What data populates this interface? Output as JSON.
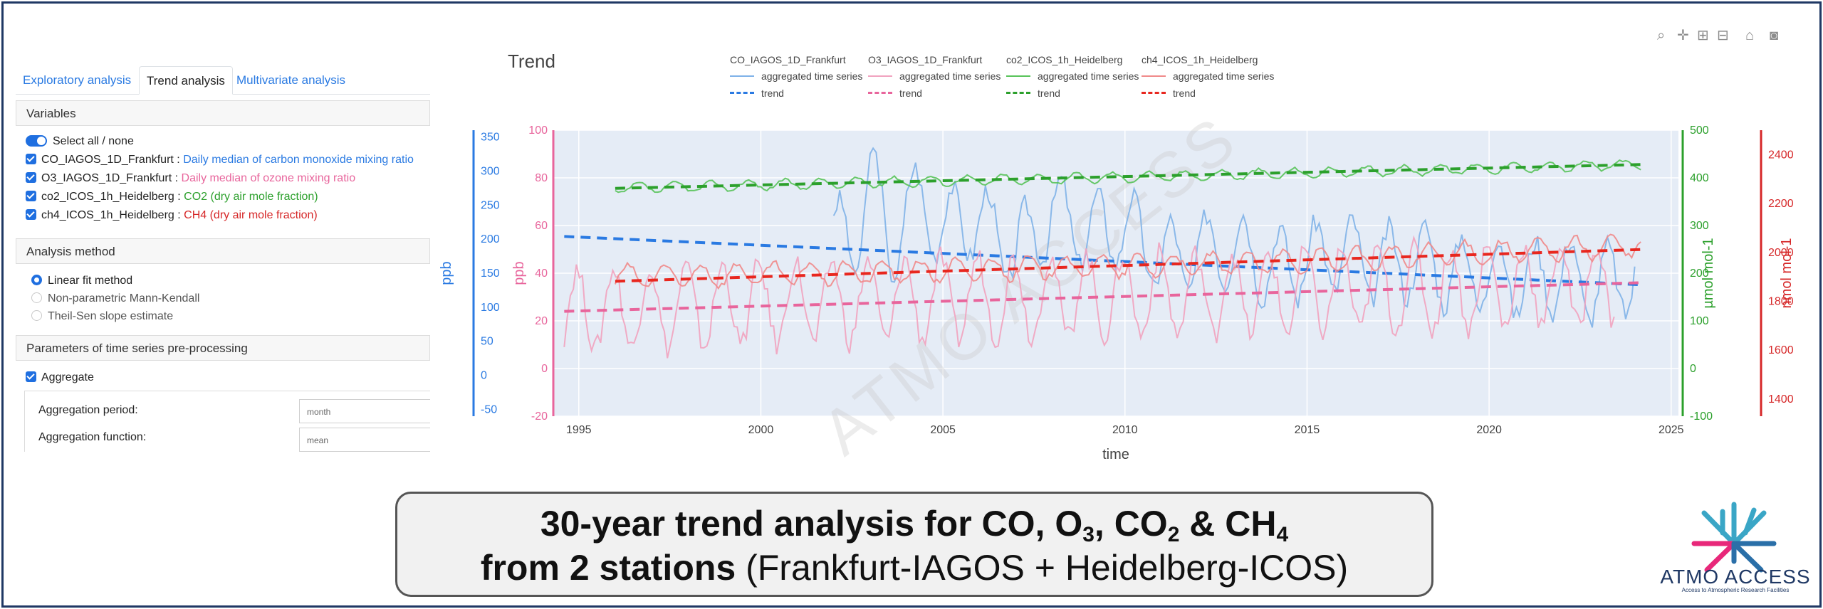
{
  "tabs": [
    "Exploratory analysis",
    "Trend analysis",
    "Multivariate analysis"
  ],
  "active_tab": 1,
  "variables": {
    "header": "Variables",
    "select_all_label": "Select all / none",
    "items": [
      {
        "name": "CO_IAGOS_1D_Frankfurt",
        "desc": "Daily median of carbon monoxide mixing ratio",
        "color": "#2a7ae2"
      },
      {
        "name": "O3_IAGOS_1D_Frankfurt",
        "desc": "Daily median of ozone mixing ratio",
        "color": "#e8659c"
      },
      {
        "name": "co2_ICOS_1h_Heidelberg",
        "desc": "CO2 (dry air mole fraction)",
        "color": "#2ca02c"
      },
      {
        "name": "ch4_ICOS_1h_Heidelberg",
        "desc": "CH4 (dry air mole fraction)",
        "color": "#d62728"
      }
    ],
    "separator": " : "
  },
  "analysis_method": {
    "header": "Analysis method",
    "options": [
      "Linear fit method",
      "Non-parametric Mann-Kendall",
      "Theil-Sen slope estimate"
    ],
    "selected": 0
  },
  "preprocessing": {
    "header": "Parameters of time series pre-processing",
    "aggregate_label": "Aggregate",
    "period_label": "Aggregation period:",
    "period_value": "month",
    "function_label": "Aggregation function:",
    "function_value": "mean"
  },
  "caption": {
    "line1_prefix": "30-year trend analysis for CO, O",
    "line1_o3_sub": "3",
    "line1_mid": ", CO",
    "line1_co2_sub": "2",
    "line1_and": " & CH",
    "line1_ch4_sub": "4",
    "line2_bold": "from 2 stations",
    "line2_rest": " (Frankfurt-IAGOS + Heidelberg-ICOS)"
  },
  "logo": {
    "name": "ATMO ACCESS",
    "tagline": "Access to Atmospheric Research Facilities"
  },
  "chart_data": {
    "type": "line",
    "title": "Trend",
    "xlabel": "time",
    "watermark": "ATMO ACCESS",
    "x_range": [
      1994.3,
      2025.2
    ],
    "x_ticks": [
      1995,
      2000,
      2005,
      2010,
      2015,
      2020,
      2025
    ],
    "axes": {
      "ppb_left": {
        "label": "ppb",
        "range": [
          -60,
          360
        ],
        "ticks": [
          -50,
          0,
          50,
          100,
          150,
          200,
          250,
          300,
          350
        ],
        "color": "#2a7ae2"
      },
      "ppb_right": {
        "label": "ppb",
        "range": [
          -20,
          100
        ],
        "ticks": [
          -20,
          0,
          20,
          40,
          60,
          80,
          100
        ],
        "color": "#e8659c"
      },
      "umol": {
        "label": "µmol mol-1",
        "range": [
          -100,
          500
        ],
        "ticks": [
          -100,
          0,
          100,
          200,
          300,
          400,
          500
        ],
        "color": "#2ca02c"
      },
      "nmol": {
        "label": "nmol mol-1",
        "range": [
          1330,
          2500
        ],
        "ticks": [
          1400,
          1600,
          1800,
          2000,
          2200,
          2400
        ],
        "color": "#d62728"
      }
    },
    "legend": {
      "series_label": "aggregated time series",
      "trend_label": "trend"
    },
    "series": [
      {
        "name": "CO_IAGOS_1D_Frankfurt",
        "axis": "ppb_left",
        "color": "#7fb2e8",
        "trend_color": "#2a7ae2",
        "x": [
          2002.0,
          2002.5,
          2003.0,
          2003.5,
          2004.0,
          2005.0,
          2006.0,
          2007.0,
          2008.0,
          2009.0,
          2010.0,
          2011.0,
          2012.0,
          2013.0,
          2014.0,
          2015.0,
          2016.0,
          2017.0,
          2018.0,
          2019.0,
          2020.0,
          2021.0,
          2022.0,
          2023.0,
          2024.0
        ],
        "y": [
          240,
          150,
          330,
          160,
          260,
          220,
          230,
          180,
          240,
          210,
          220,
          170,
          180,
          190,
          160,
          170,
          180,
          160,
          170,
          150,
          150,
          140,
          150,
          130,
          150
        ],
        "amplitude": 55,
        "trend": {
          "x0": 1994.6,
          "y0": 204,
          "x1": 2024.2,
          "y1": 133
        }
      },
      {
        "name": "O3_IAGOS_1D_Frankfurt",
        "axis": "ppb_right",
        "color": "#f1a3bf",
        "trend_color": "#e8659c",
        "x": [
          1994.6,
          1996.0,
          1998.0,
          2000.0,
          2002.0,
          2004.0,
          2006.0,
          2008.0,
          2010.0,
          2012.0,
          2014.0,
          2016.0,
          2018.0,
          2020.0,
          2022.0,
          2023.5
        ],
        "y": [
          24,
          25,
          26,
          27,
          28,
          29,
          30,
          30,
          31,
          31,
          32,
          33,
          33,
          34,
          35,
          35
        ],
        "amplitude": 17,
        "trend": {
          "x0": 1994.6,
          "y0": 24,
          "x1": 2024.2,
          "y1": 36
        }
      },
      {
        "name": "co2_ICOS_1h_Heidelberg",
        "axis": "umol",
        "color": "#58c35a",
        "trend_color": "#2ca02c",
        "x": [
          1996.0,
          2000.0,
          2004.0,
          2008.0,
          2012.0,
          2016.0,
          2020.0,
          2024.2
        ],
        "y": [
          378,
          385,
          392,
          398,
          405,
          412,
          420,
          428
        ],
        "amplitude": 10,
        "trend": {
          "x0": 1996.0,
          "y0": 378,
          "x1": 2024.2,
          "y1": 428
        }
      },
      {
        "name": "ch4_ICOS_1h_Heidelberg",
        "axis": "nmol",
        "color": "#f08a8a",
        "trend_color": "#e8271f",
        "x": [
          1996.0,
          2000.0,
          2004.0,
          2008.0,
          2012.0,
          2016.0,
          2020.0,
          2024.2
        ],
        "y": [
          1900,
          1910,
          1920,
          1940,
          1950,
          1970,
          2000,
          2030
        ],
        "amplitude": 45,
        "trend": {
          "x0": 1996.0,
          "y0": 1882,
          "x1": 2024.2,
          "y1": 2012
        }
      }
    ]
  }
}
